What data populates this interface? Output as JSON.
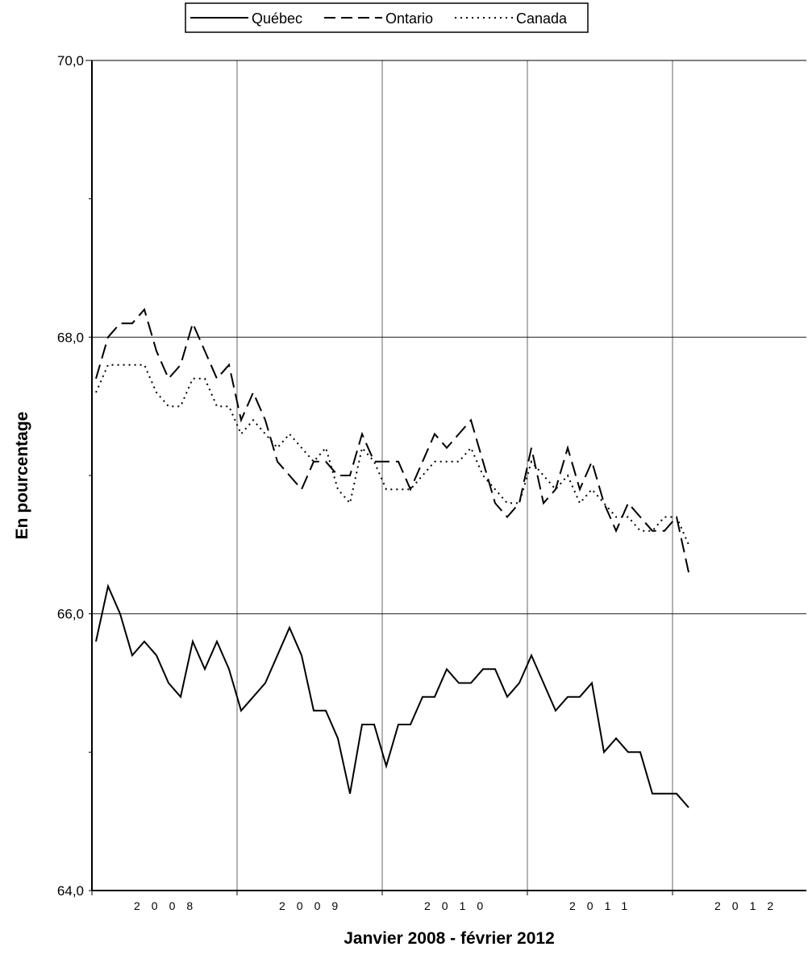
{
  "chart_data": {
    "type": "line",
    "xlabel": "Janvier 2008 - février 2012",
    "ylabel": "En pourcentage",
    "ylim": [
      64,
      70
    ],
    "yticks": [
      "64,0",
      "66,0",
      "68,0",
      "70,0"
    ],
    "year_labels": [
      "2008",
      "2009",
      "2010",
      "2011",
      "2012"
    ],
    "grid": true,
    "legend_position": "top-center",
    "x": [
      "2008-01",
      "2008-02",
      "2008-03",
      "2008-04",
      "2008-05",
      "2008-06",
      "2008-07",
      "2008-08",
      "2008-09",
      "2008-10",
      "2008-11",
      "2008-12",
      "2009-01",
      "2009-02",
      "2009-03",
      "2009-04",
      "2009-05",
      "2009-06",
      "2009-07",
      "2009-08",
      "2009-09",
      "2009-10",
      "2009-11",
      "2009-12",
      "2010-01",
      "2010-02",
      "2010-03",
      "2010-04",
      "2010-05",
      "2010-06",
      "2010-07",
      "2010-08",
      "2010-09",
      "2010-10",
      "2010-11",
      "2010-12",
      "2011-01",
      "2011-02",
      "2011-03",
      "2011-04",
      "2011-05",
      "2011-06",
      "2011-07",
      "2011-08",
      "2011-09",
      "2011-10",
      "2011-11",
      "2011-12",
      "2012-01",
      "2012-02"
    ],
    "series": [
      {
        "name": "Québec",
        "style": "solid",
        "color": "#000000",
        "values": [
          65.8,
          66.2,
          66.0,
          65.7,
          65.8,
          65.7,
          65.5,
          65.4,
          65.8,
          65.6,
          65.8,
          65.6,
          65.3,
          65.4,
          65.5,
          65.7,
          65.9,
          65.7,
          65.3,
          65.3,
          65.1,
          64.7,
          65.2,
          65.2,
          64.9,
          65.2,
          65.2,
          65.4,
          65.4,
          65.6,
          65.5,
          65.5,
          65.6,
          65.6,
          65.4,
          65.5,
          65.7,
          65.5,
          65.3,
          65.4,
          65.4,
          65.5,
          65.0,
          65.1,
          65.0,
          65.0,
          64.7,
          64.7,
          64.7,
          64.6
        ]
      },
      {
        "name": "Ontario",
        "style": "dashed",
        "color": "#000000",
        "values": [
          67.7,
          68.0,
          68.1,
          68.1,
          68.2,
          67.9,
          67.7,
          67.8,
          68.1,
          67.9,
          67.7,
          67.8,
          67.4,
          67.6,
          67.4,
          67.1,
          67.0,
          66.9,
          67.1,
          67.1,
          67.0,
          67.0,
          67.3,
          67.1,
          67.1,
          67.1,
          66.9,
          67.1,
          67.3,
          67.2,
          67.3,
          67.4,
          67.1,
          66.8,
          66.7,
          66.8,
          67.2,
          66.8,
          66.9,
          67.2,
          66.9,
          67.1,
          66.8,
          66.6,
          66.8,
          66.7,
          66.6,
          66.6,
          66.7,
          66.3
        ]
      },
      {
        "name": "Canada",
        "style": "dotted",
        "color": "#000000",
        "values": [
          67.6,
          67.8,
          67.8,
          67.8,
          67.8,
          67.6,
          67.5,
          67.5,
          67.7,
          67.7,
          67.5,
          67.5,
          67.3,
          67.4,
          67.3,
          67.2,
          67.3,
          67.2,
          67.1,
          67.2,
          66.9,
          66.8,
          67.2,
          67.1,
          66.9,
          66.9,
          66.9,
          67.0,
          67.1,
          67.1,
          67.1,
          67.2,
          67.0,
          66.9,
          66.8,
          66.8,
          67.1,
          67.0,
          66.9,
          67.0,
          66.8,
          66.9,
          66.8,
          66.7,
          66.7,
          66.6,
          66.6,
          66.7,
          66.7,
          66.5
        ]
      }
    ]
  }
}
